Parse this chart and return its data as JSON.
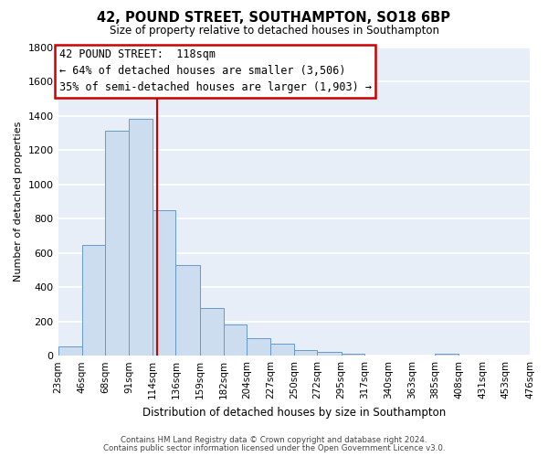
{
  "title": "42, POUND STREET, SOUTHAMPTON, SO18 6BP",
  "subtitle": "Size of property relative to detached houses in Southampton",
  "xlabel": "Distribution of detached houses by size in Southampton",
  "ylabel": "Number of detached properties",
  "bin_edges": [
    23,
    46,
    68,
    91,
    114,
    136,
    159,
    182,
    204,
    227,
    250,
    272,
    295,
    317,
    340,
    363,
    385,
    408,
    431,
    453,
    476
  ],
  "bin_labels": [
    "23sqm",
    "46sqm",
    "68sqm",
    "91sqm",
    "114sqm",
    "136sqm",
    "159sqm",
    "182sqm",
    "204sqm",
    "227sqm",
    "250sqm",
    "272sqm",
    "295sqm",
    "317sqm",
    "340sqm",
    "363sqm",
    "385sqm",
    "408sqm",
    "431sqm",
    "453sqm",
    "476sqm"
  ],
  "counts": [
    55,
    645,
    1310,
    1380,
    850,
    530,
    280,
    183,
    103,
    68,
    32,
    22,
    12,
    0,
    0,
    0,
    10,
    0,
    0,
    0
  ],
  "bar_color": "#ccddf0",
  "bar_edge_color": "#6699cc",
  "vline_x": 118,
  "vline_color": "#cc0000",
  "annotation_title": "42 POUND STREET:  118sqm",
  "annotation_line1": "← 64% of detached houses are smaller (3,506)",
  "annotation_line2": "35% of semi-detached houses are larger (1,903) →",
  "annotation_box_edge": "#cc0000",
  "ylim": [
    0,
    1800
  ],
  "yticks": [
    0,
    200,
    400,
    600,
    800,
    1000,
    1200,
    1400,
    1600,
    1800
  ],
  "plot_bg_color": "#e8eef8",
  "fig_bg_color": "#ffffff",
  "grid_color": "#ffffff",
  "footer1": "Contains HM Land Registry data © Crown copyright and database right 2024.",
  "footer2": "Contains public sector information licensed under the Open Government Licence v3.0."
}
